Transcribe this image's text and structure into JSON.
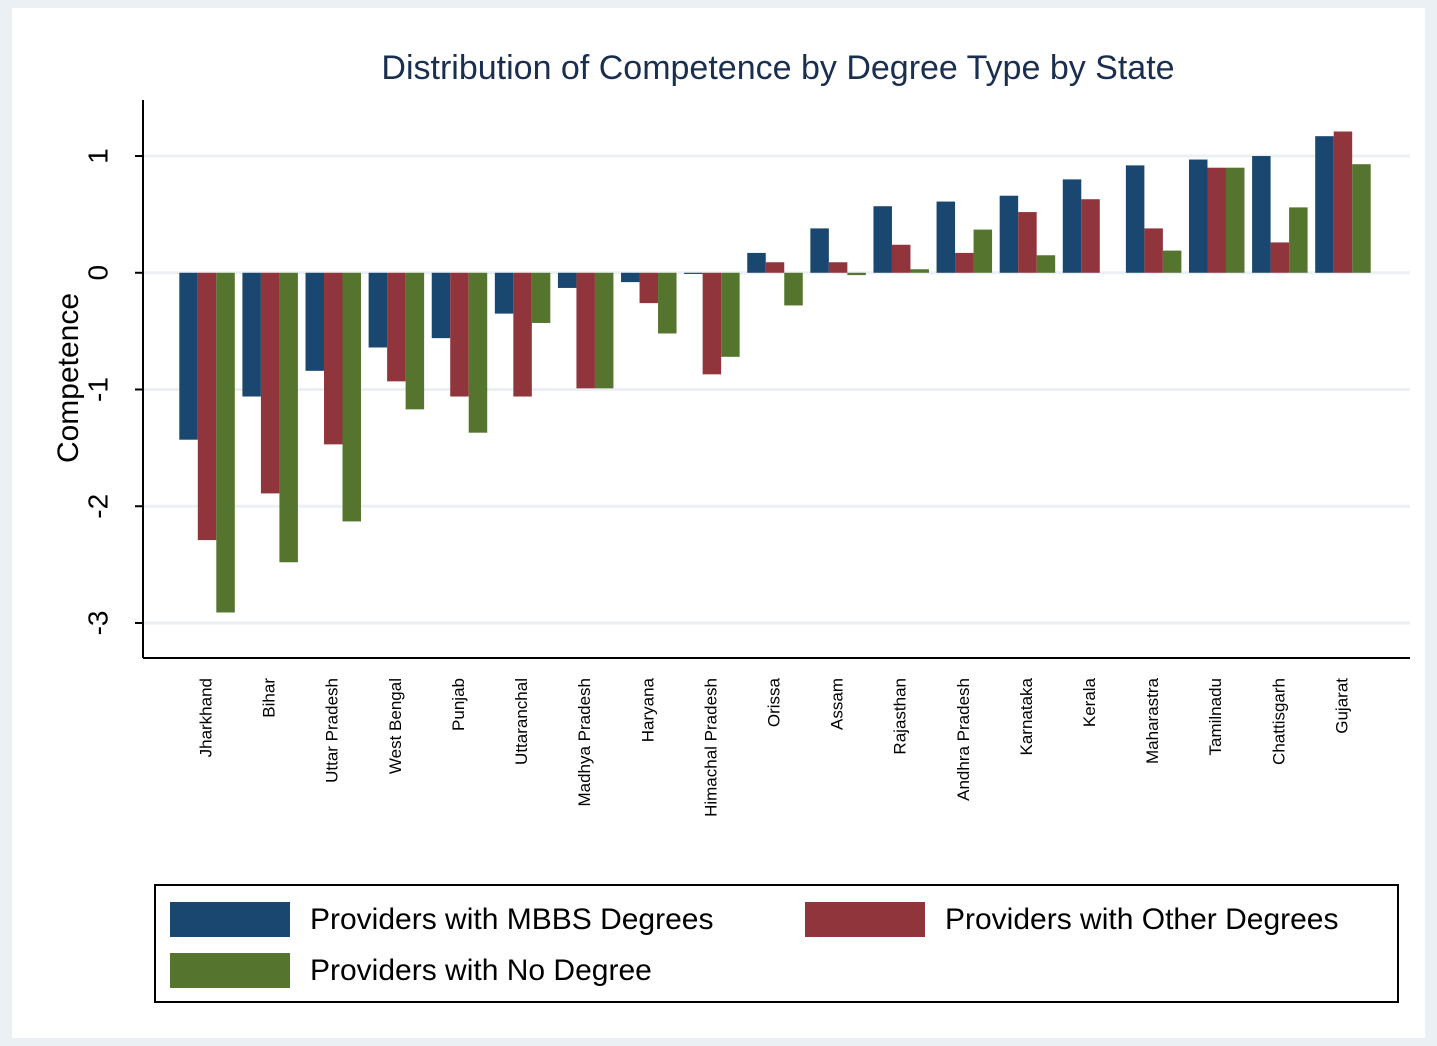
{
  "chart_data": {
    "type": "bar",
    "title": "Distribution of Competence by Degree Type by State",
    "y_label": "Competence",
    "categories": [
      "Jharkhand",
      "Bihar",
      "Uttar Pradesh",
      "West Bengal",
      "Punjab",
      "Uttaranchal",
      "Madhya Pradesh",
      "Haryana",
      "Himachal Pradesh",
      "Orissa",
      "Assam",
      "Rajasthan",
      "Andhra Pradesh",
      "Karnataka",
      "Kerala",
      "Maharastra",
      "Tamilnadu",
      "Chattisgarh",
      "Gujarat"
    ],
    "series": [
      {
        "name": "Providers with MBBS Degrees",
        "color": "#1a476f",
        "values": [
          -1.43,
          -1.06,
          -0.84,
          -0.64,
          -0.56,
          -0.35,
          -0.13,
          -0.08,
          -0.01,
          0.17,
          0.38,
          0.57,
          0.61,
          0.66,
          0.8,
          0.92,
          0.97,
          1.0,
          1.17
        ]
      },
      {
        "name": "Providers with Other Degrees",
        "color": "#90353b",
        "values": [
          -2.29,
          -1.89,
          -1.47,
          -0.93,
          -1.06,
          -1.06,
          -0.99,
          -0.26,
          -0.87,
          0.09,
          0.09,
          0.24,
          0.17,
          0.52,
          0.63,
          0.38,
          0.9,
          0.26,
          1.21
        ]
      },
      {
        "name": "Providers with No Degree",
        "color": "#55752f",
        "values": [
          -2.91,
          -2.48,
          -2.13,
          -1.17,
          -1.37,
          -0.43,
          -0.99,
          -0.52,
          -0.72,
          -0.28,
          -0.02,
          0.03,
          0.37,
          0.15,
          null,
          0.19,
          0.9,
          0.56,
          0.93
        ]
      }
    ],
    "ylim": [
      -3.3,
      1.48
    ],
    "yticks": [
      -3,
      -2,
      -1,
      0,
      1
    ],
    "grid": true
  }
}
